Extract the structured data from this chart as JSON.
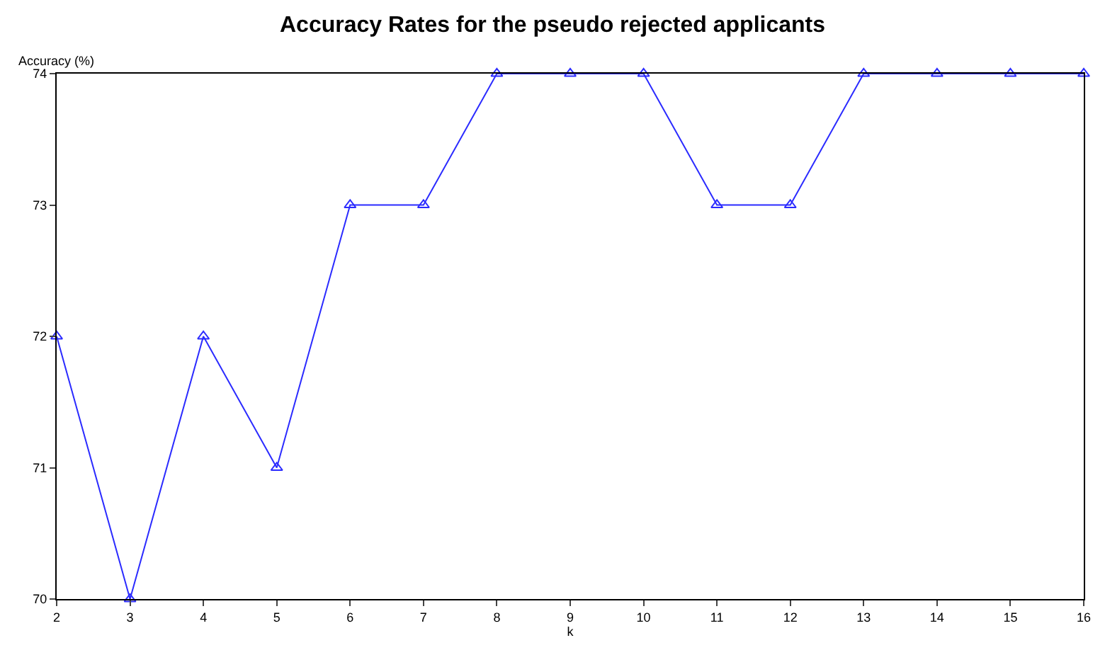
{
  "chart_data": {
    "type": "line",
    "title": "Accuracy Rates for the pseudo rejected applicants",
    "xlabel": "k",
    "ylabel": "Accuracy (%)",
    "x": [
      2,
      3,
      4,
      5,
      6,
      7,
      8,
      9,
      10,
      11,
      12,
      13,
      14,
      15,
      16
    ],
    "series": [
      {
        "color": "#2b2bff",
        "values": [
          72,
          70,
          72,
          71,
          73,
          73,
          74,
          74,
          74,
          73,
          73,
          74,
          74,
          74,
          74
        ]
      }
    ],
    "xlim": [
      2,
      16
    ],
    "xticks": [
      2,
      3,
      4,
      5,
      6,
      7,
      8,
      9,
      10,
      11,
      12,
      13,
      14,
      15,
      16
    ],
    "ylim": [
      70,
      74
    ],
    "yticks": [
      70,
      71,
      72,
      73,
      74
    ],
    "legend": false,
    "marker": "triangle",
    "line_style": "solid"
  }
}
